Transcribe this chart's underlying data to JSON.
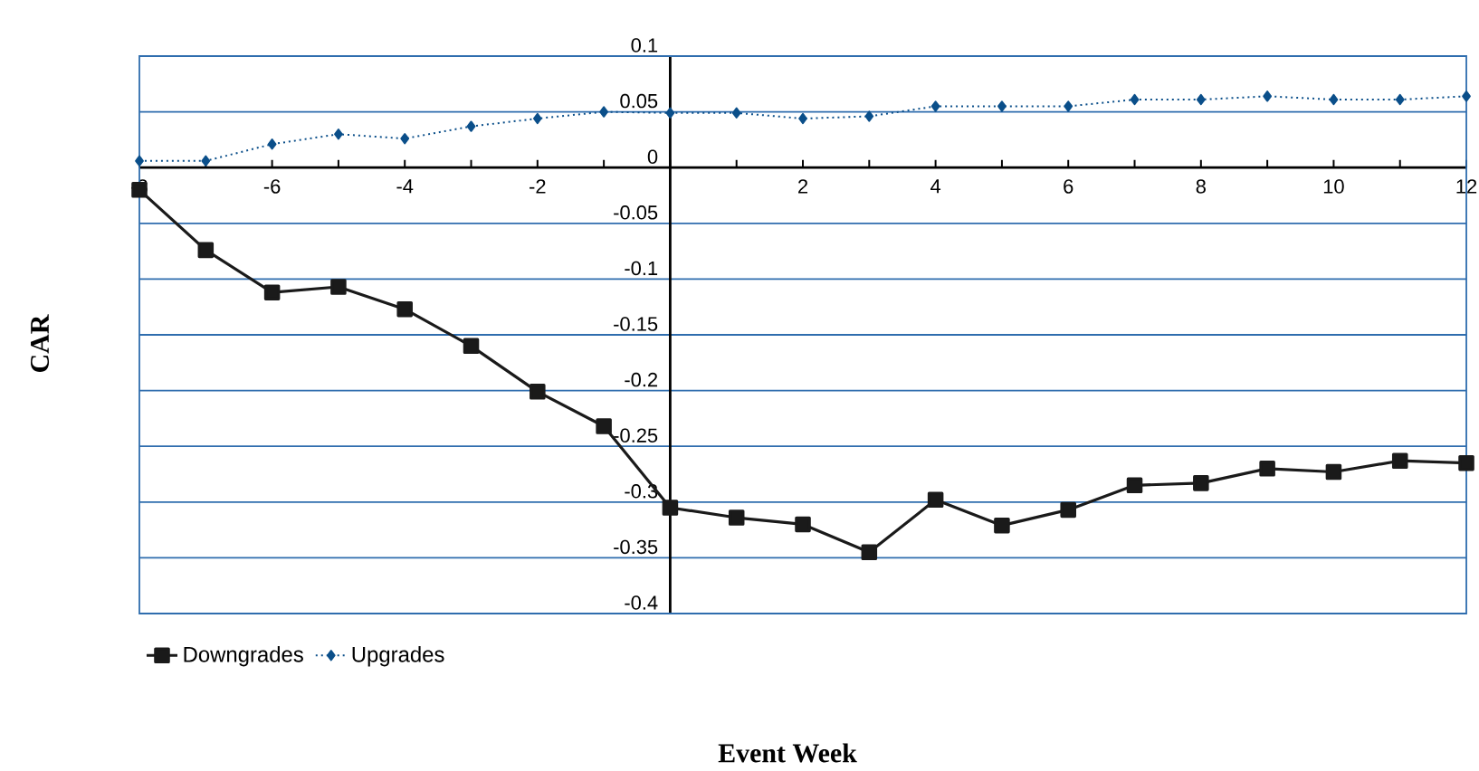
{
  "chart_data": {
    "type": "line",
    "xlabel": "Event Week",
    "ylabel": "CAR",
    "x": [
      -8,
      -7,
      -6,
      -5,
      -4,
      -3,
      -2,
      -1,
      0,
      1,
      2,
      3,
      4,
      5,
      6,
      7,
      8,
      9,
      10,
      11,
      12
    ],
    "series": [
      {
        "name": "Downgrades",
        "color": "#1a1a1a",
        "marker": "square",
        "line_style": "solid",
        "values": [
          -0.02,
          -0.074,
          -0.112,
          -0.107,
          -0.127,
          -0.16,
          -0.201,
          -0.232,
          -0.305,
          -0.314,
          -0.32,
          -0.345,
          -0.298,
          -0.321,
          -0.307,
          -0.285,
          -0.283,
          -0.27,
          -0.273,
          -0.263,
          -0.265
        ]
      },
      {
        "name": "Upgrades",
        "color": "#0b4f8a",
        "marker": "diamond",
        "line_style": "dotted",
        "values": [
          0.006,
          0.006,
          0.021,
          0.03,
          0.026,
          0.037,
          0.044,
          0.05,
          0.049,
          0.049,
          0.044,
          0.046,
          0.055,
          0.055,
          0.055,
          0.061,
          0.061,
          0.064,
          0.061,
          0.061,
          0.064
        ]
      }
    ],
    "xlim": [
      -8,
      12
    ],
    "xticks": [
      -8,
      {
        "value": -7,
        "label": null
      },
      -6,
      {
        "value": -5,
        "label": null
      },
      -4,
      {
        "value": -3,
        "label": null
      },
      -2,
      {
        "value": -1,
        "label": null
      },
      {
        "value": 0,
        "label": null
      },
      {
        "value": 1,
        "label": null
      },
      2,
      {
        "value": 3,
        "label": null
      },
      4,
      {
        "value": 5,
        "label": null
      },
      6,
      {
        "value": 7,
        "label": null
      },
      8,
      {
        "value": 9,
        "label": null
      },
      10,
      {
        "value": 11,
        "label": null
      },
      12
    ],
    "ylim": [
      -0.4,
      0.1
    ],
    "yticks": [
      -0.4,
      -0.35,
      -0.3,
      -0.25,
      -0.2,
      -0.15,
      -0.1,
      -0.05,
      0,
      0.05,
      0.1
    ],
    "grid": "y",
    "legend": "bottom left"
  }
}
